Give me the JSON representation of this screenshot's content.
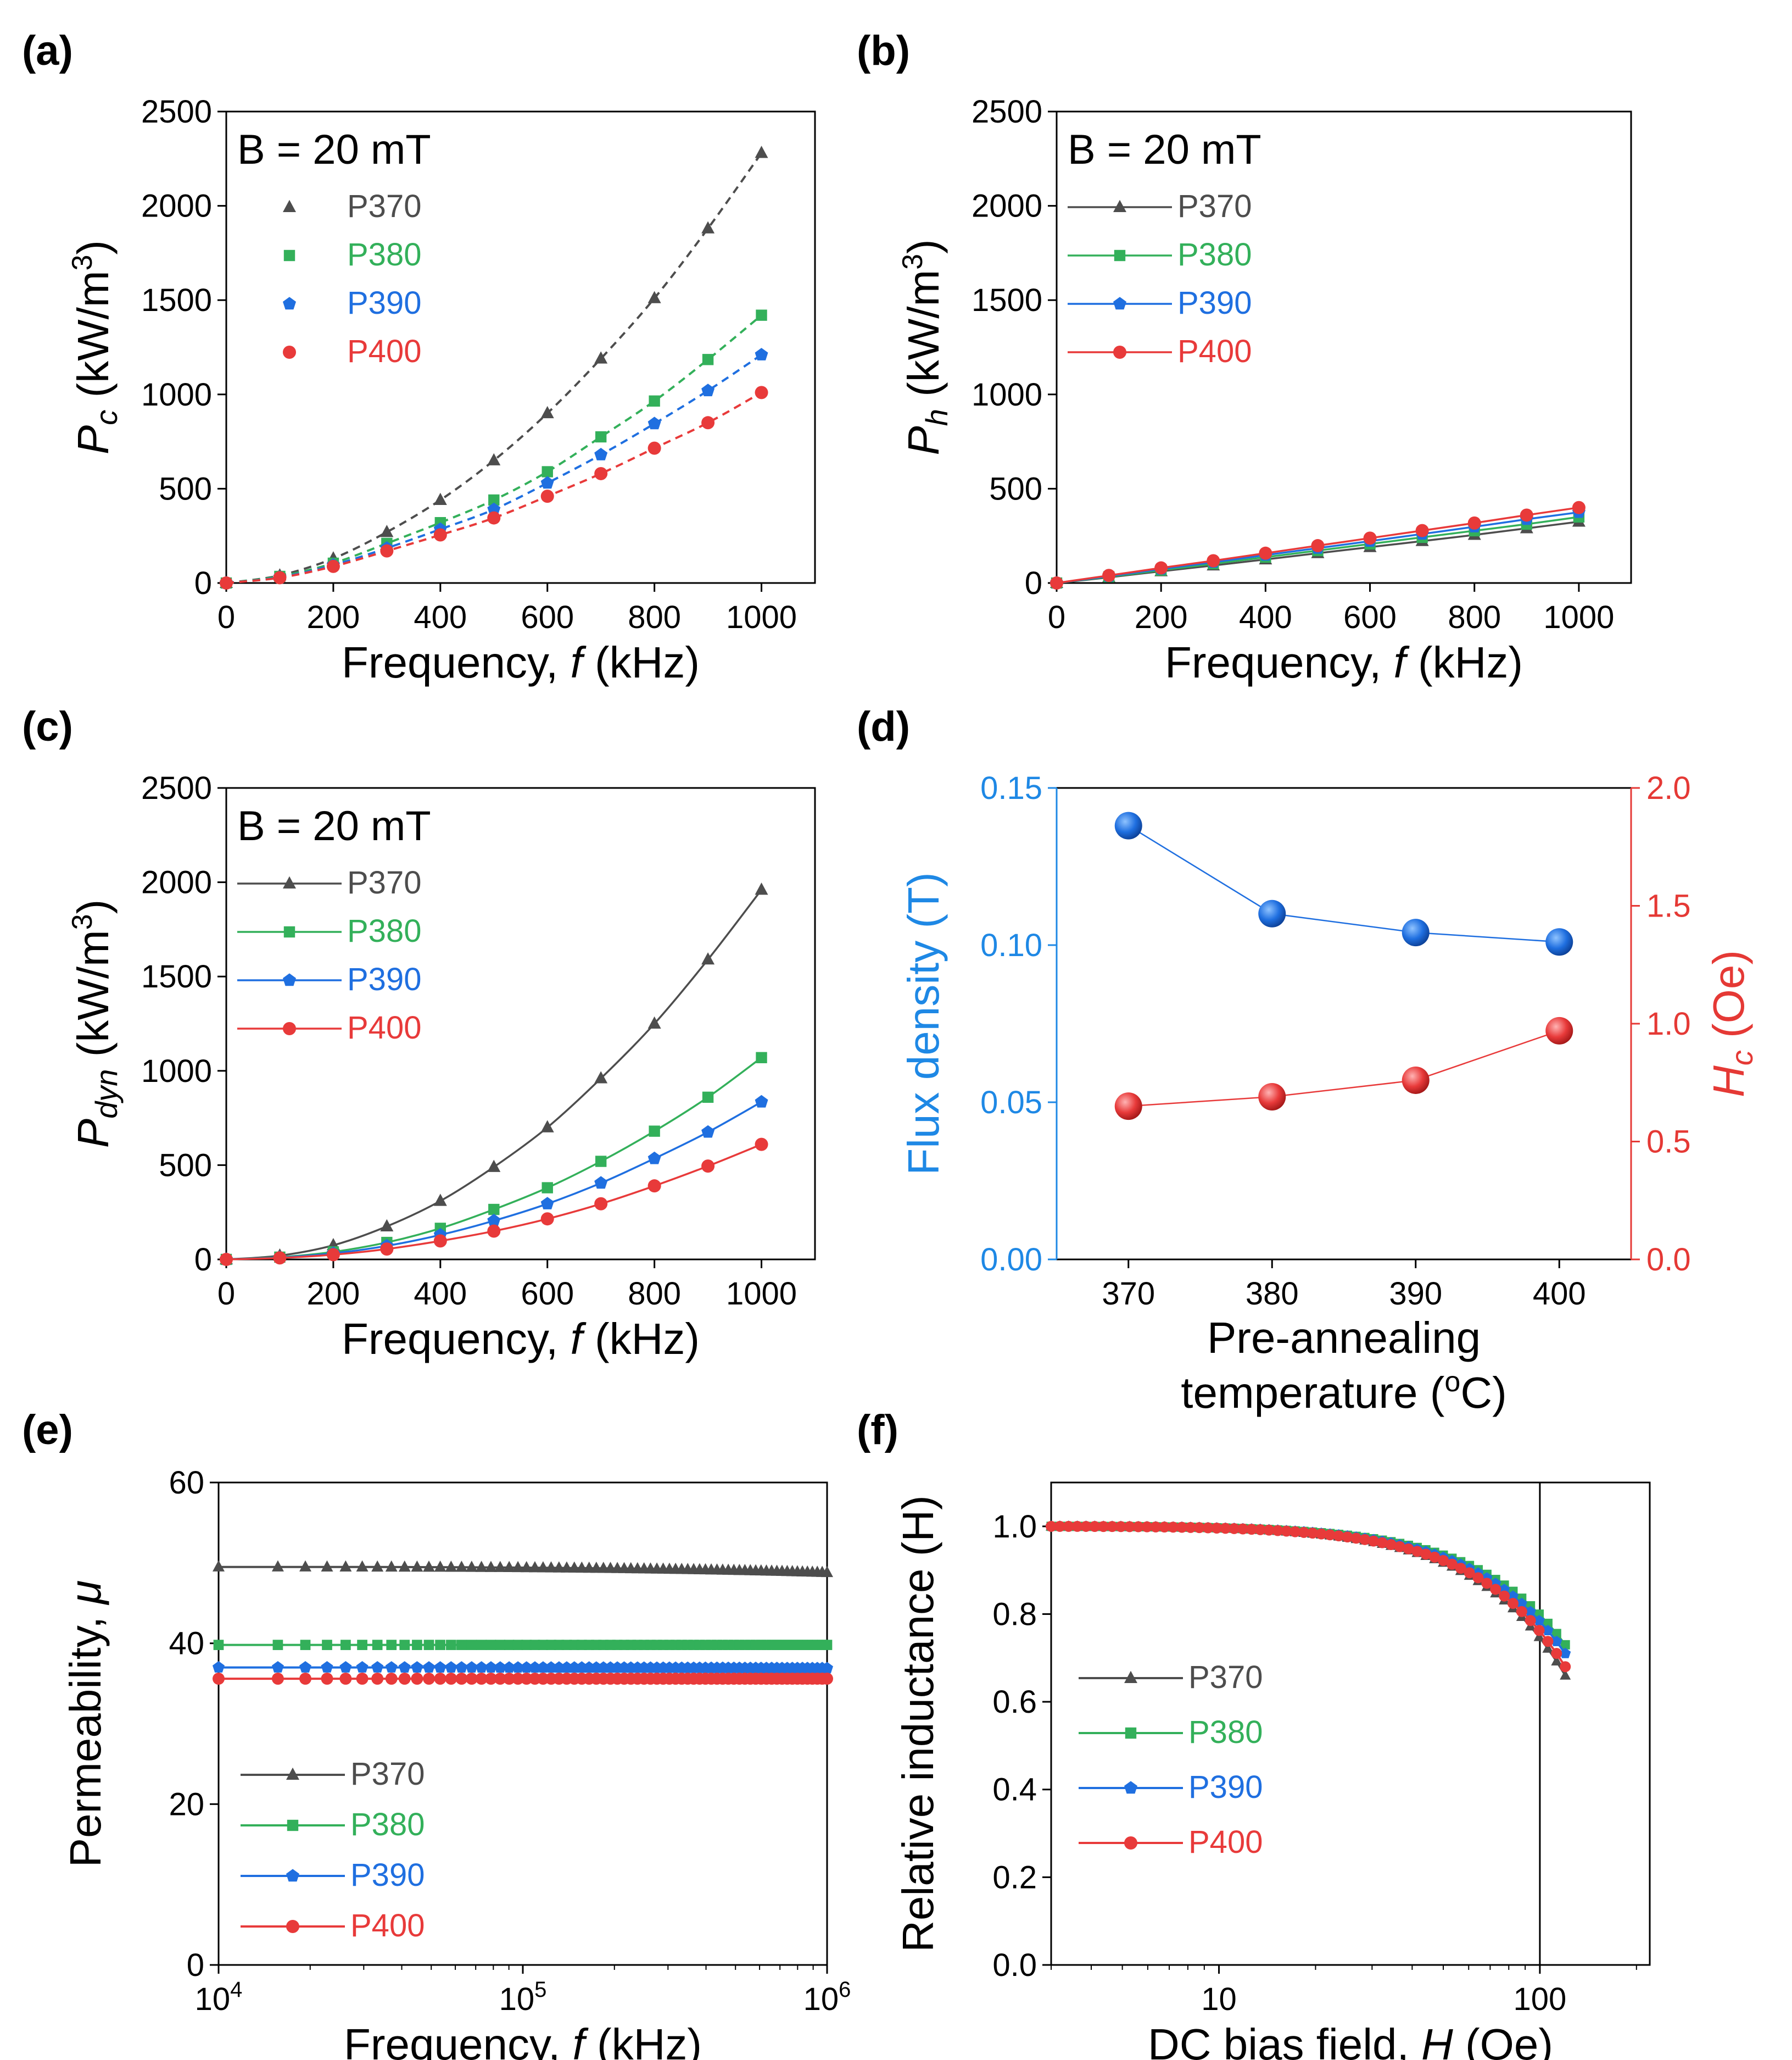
{
  "colors": {
    "P370": "#4d4d4d",
    "P380": "#33b05a",
    "P390": "#1f6fe0",
    "P400": "#e83a3a",
    "axis": "#000000",
    "ylabel_left": "#1e88e5",
    "ylabel_right": "#e53935"
  },
  "chart_data": [
    {
      "id": "a",
      "panel_label": "(a)",
      "type": "scatter",
      "annotation": "B = 20 mT",
      "xlabel": "Frequency, f (kHz)",
      "ylabel": "Pc (kW/m3)",
      "xlim": [
        0,
        1100
      ],
      "ylim": [
        0,
        2500
      ],
      "xticks": [
        "0",
        "200",
        "400",
        "600",
        "800",
        "1000"
      ],
      "yticks": [
        "0",
        "500",
        "1000",
        "1500",
        "2000",
        "2500"
      ],
      "line_style": "dashed",
      "legend_style": "marker",
      "x": [
        0,
        100,
        200,
        300,
        400,
        500,
        600,
        700,
        800,
        900,
        1000
      ],
      "series": [
        {
          "name": "P370",
          "marker": "triangle",
          "values": [
            0,
            40,
            130,
            270,
            440,
            650,
            900,
            1190,
            1510,
            1880,
            2280
          ]
        },
        {
          "name": "P380",
          "marker": "square",
          "values": [
            0,
            35,
            105,
            210,
            320,
            440,
            590,
            775,
            965,
            1185,
            1420
          ]
        },
        {
          "name": "P390",
          "marker": "pentagon",
          "values": [
            0,
            30,
            95,
            185,
            285,
            390,
            530,
            680,
            845,
            1020,
            1210
          ]
        },
        {
          "name": "P400",
          "marker": "circle",
          "values": [
            0,
            28,
            88,
            170,
            255,
            345,
            460,
            580,
            715,
            850,
            1010
          ]
        }
      ]
    },
    {
      "id": "b",
      "panel_label": "(b)",
      "type": "line",
      "annotation": "B = 20 mT",
      "xlabel": "Frequency, f (kHz)",
      "ylabel": "Ph (kW/m3)",
      "xlim": [
        0,
        1100
      ],
      "ylim": [
        0,
        2500
      ],
      "xticks": [
        "0",
        "200",
        "400",
        "600",
        "800",
        "1000"
      ],
      "yticks": [
        "0",
        "500",
        "1000",
        "1500",
        "2000",
        "2500"
      ],
      "line_style": "solid",
      "legend_style": "line",
      "x": [
        0,
        100,
        200,
        300,
        400,
        500,
        600,
        700,
        800,
        900,
        1000
      ],
      "series": [
        {
          "name": "P370",
          "marker": "triangle",
          "values": [
            0,
            30,
            62,
            93,
            125,
            158,
            190,
            222,
            255,
            290,
            325
          ]
        },
        {
          "name": "P380",
          "marker": "square",
          "values": [
            0,
            33,
            68,
            102,
            137,
            172,
            207,
            242,
            277,
            312,
            350
          ]
        },
        {
          "name": "P390",
          "marker": "pentagon",
          "values": [
            0,
            36,
            74,
            110,
            148,
            185,
            222,
            260,
            298,
            338,
            375
          ]
        },
        {
          "name": "P400",
          "marker": "circle",
          "values": [
            0,
            40,
            80,
            118,
            158,
            198,
            238,
            278,
            318,
            360,
            400
          ]
        }
      ]
    },
    {
      "id": "c",
      "panel_label": "(c)",
      "type": "line",
      "annotation": "B = 20 mT",
      "xlabel": "Frequency, f (kHz)",
      "ylabel": "Pdyn (kW/m3)",
      "xlim": [
        0,
        1100
      ],
      "ylim": [
        0,
        2500
      ],
      "xticks": [
        "0",
        "200",
        "400",
        "600",
        "800",
        "1000"
      ],
      "yticks": [
        "0",
        "500",
        "1000",
        "1500",
        "2000",
        "2500"
      ],
      "line_style": "solid",
      "legend_style": "line",
      "x": [
        0,
        100,
        200,
        300,
        400,
        500,
        600,
        700,
        800,
        900,
        1000
      ],
      "series": [
        {
          "name": "P370",
          "marker": "triangle",
          "values": [
            0,
            20,
            75,
            175,
            310,
            490,
            700,
            960,
            1250,
            1590,
            1960
          ]
        },
        {
          "name": "P380",
          "marker": "square",
          "values": [
            0,
            12,
            40,
            90,
            165,
            265,
            380,
            520,
            680,
            860,
            1070
          ]
        },
        {
          "name": "P390",
          "marker": "pentagon",
          "values": [
            0,
            10,
            32,
            72,
            130,
            205,
            295,
            405,
            535,
            675,
            835
          ]
        },
        {
          "name": "P400",
          "marker": "circle",
          "values": [
            0,
            8,
            25,
            55,
            98,
            150,
            215,
            295,
            390,
            495,
            610
          ]
        }
      ]
    },
    {
      "id": "d",
      "panel_label": "(d)",
      "type": "scatter",
      "xlabel_line1": "Pre-annealing",
      "xlabel_line2": "temperature (oC)",
      "ylabel": "Flux density (T)",
      "y2label": "Hc (Oe)",
      "xlim": [
        365,
        405
      ],
      "ylim": [
        0,
        0.15
      ],
      "y2lim": [
        0,
        2.0
      ],
      "x": [
        370,
        380,
        390,
        400
      ],
      "xticks": [
        "370",
        "380",
        "390",
        "400"
      ],
      "yticks": [
        "0.00",
        "0.05",
        "0.10",
        "0.15"
      ],
      "y2ticks": [
        "0.0",
        "0.5",
        "1.0",
        "1.5",
        "2.0"
      ],
      "series": [
        {
          "name": "Flux density",
          "axis": "left",
          "values": [
            0.138,
            0.11,
            0.104,
            0.101
          ]
        },
        {
          "name": "Hc",
          "axis": "right",
          "values": [
            0.65,
            0.69,
            0.76,
            0.97
          ]
        }
      ]
    },
    {
      "id": "e",
      "panel_label": "(e)",
      "type": "line",
      "xlabel": "Frequency, f (kHz)",
      "ylabel": "Permeability, μ",
      "xscale": "log",
      "xlim": [
        10000,
        1000000
      ],
      "ylim": [
        0,
        60
      ],
      "xticks": [
        {
          "base": "10",
          "exp": "4"
        },
        {
          "base": "10",
          "exp": "5"
        },
        {
          "base": "10",
          "exp": "6"
        }
      ],
      "yticks": [
        "0",
        "20",
        "40",
        "60"
      ],
      "legend_style": "line",
      "series": [
        {
          "name": "P370",
          "marker": "triangle",
          "start": 49.5,
          "end": 48.8
        },
        {
          "name": "P380",
          "marker": "square",
          "start": 39.8,
          "end": 39.8
        },
        {
          "name": "P390",
          "marker": "pentagon",
          "start": 37.0,
          "end": 36.9
        },
        {
          "name": "P400",
          "marker": "circle",
          "start": 35.6,
          "end": 35.6
        }
      ]
    },
    {
      "id": "f",
      "panel_label": "(f)",
      "type": "line",
      "xlabel": "DC bias field, H (Oe)",
      "ylabel": "Relative inductance (H)",
      "xscale": "log",
      "xlim": [
        3,
        220
      ],
      "ylim": [
        0,
        1.1
      ],
      "xticks": [
        "10",
        "100"
      ],
      "yticks": [
        "0.0",
        "0.2",
        "0.4",
        "0.6",
        "0.8",
        "1.0"
      ],
      "vline_x": 100,
      "legend_style": "line",
      "series": [
        {
          "name": "P370",
          "marker": "triangle",
          "end_value": 0.66
        },
        {
          "name": "P380",
          "marker": "square",
          "end_value": 0.73
        },
        {
          "name": "P390",
          "marker": "pentagon",
          "end_value": 0.71
        },
        {
          "name": "P400",
          "marker": "circle",
          "end_value": 0.68
        }
      ]
    }
  ]
}
